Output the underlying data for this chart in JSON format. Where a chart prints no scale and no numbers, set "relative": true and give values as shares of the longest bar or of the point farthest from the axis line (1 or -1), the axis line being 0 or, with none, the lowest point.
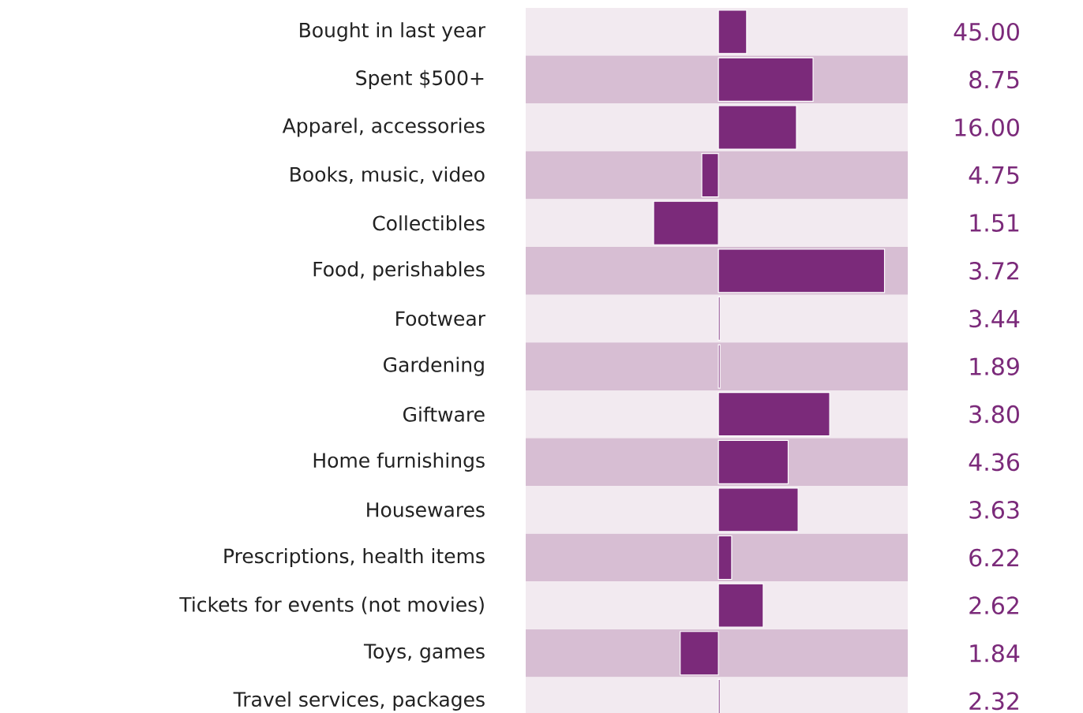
{
  "chart_data": {
    "type": "bar",
    "orientation": "horizontal",
    "relative": true,
    "categories": [
      "Bought in last year",
      "Spent $500+",
      "Apparel, accessories",
      "Books, music, video",
      "Collectibles",
      "Food, perishables",
      "Footwear",
      "Gardening",
      "Giftware",
      "Home furnishings",
      "Housewares",
      "Prescriptions, health items",
      "Tickets for events (not movies)",
      "Toys, games",
      "Travel services, packages"
    ],
    "values": [
      0.17,
      0.57,
      0.47,
      -0.1,
      -0.39,
      1,
      0.01,
      0.01,
      0.67,
      0.42,
      0.48,
      0.08,
      0.27,
      -0.23,
      0.01
    ],
    "annotations": [
      "45.00",
      "8.75",
      "16.00",
      "4.75",
      "1.51",
      "3.72",
      "3.44",
      "1.89",
      "3.80",
      "4.36",
      "3.63",
      "6.22",
      "2.62",
      "1.84",
      "2.32"
    ],
    "color": "#7b2a7a"
  }
}
